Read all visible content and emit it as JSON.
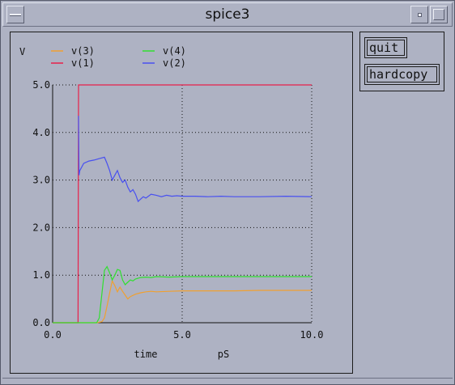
{
  "window": {
    "title": "spice3"
  },
  "buttons": {
    "quit": "quit",
    "hardcopy": "hardcopy"
  },
  "colors": {
    "background": "#aeb2c3",
    "v3": "#f0a030",
    "v1": "#e8204a",
    "v4": "#30e030",
    "v2": "#4850f0"
  },
  "chart_data": {
    "type": "line",
    "title": "",
    "ylabel": "V",
    "xlabel": "time",
    "xunit": "pS",
    "xlim": [
      0,
      10
    ],
    "ylim": [
      0,
      5
    ],
    "grid": true,
    "xticks": [
      "0.0",
      "5.0",
      "10.0"
    ],
    "yticks": [
      "0.0",
      "1.0",
      "2.0",
      "3.0",
      "4.0",
      "5.0"
    ],
    "legend_position": "top-left",
    "series": [
      {
        "name": "v(3)",
        "color": "#f0a030",
        "x": [
          0,
          1.7,
          1.9,
          2.0,
          2.1,
          2.2,
          2.3,
          2.4,
          2.5,
          2.6,
          2.7,
          2.8,
          2.9,
          3.0,
          3.2,
          3.4,
          3.6,
          3.8,
          4.0,
          4.5,
          5.0,
          6.0,
          7.0,
          8.0,
          9.0,
          10.0
        ],
        "y": [
          0,
          0,
          0.02,
          0.1,
          0.35,
          0.62,
          0.88,
          0.78,
          0.65,
          0.75,
          0.66,
          0.58,
          0.5,
          0.55,
          0.6,
          0.63,
          0.65,
          0.66,
          0.65,
          0.66,
          0.67,
          0.67,
          0.67,
          0.68,
          0.68,
          0.68
        ]
      },
      {
        "name": "v(1)",
        "color": "#e8204a",
        "x": [
          0,
          0.98,
          1.0,
          10.0
        ],
        "y": [
          0,
          0,
          5.0,
          5.0
        ]
      },
      {
        "name": "v(4)",
        "color": "#30e030",
        "x": [
          0,
          1.7,
          1.8,
          1.9,
          2.0,
          2.1,
          2.2,
          2.3,
          2.4,
          2.5,
          2.6,
          2.7,
          2.8,
          2.9,
          3.0,
          3.1,
          3.2,
          3.4,
          3.6,
          3.8,
          4.0,
          4.5,
          5.0,
          6.0,
          7.0,
          8.0,
          9.0,
          10.0
        ],
        "y": [
          0,
          0,
          0.1,
          0.6,
          1.1,
          1.18,
          1.05,
          0.9,
          1.0,
          1.12,
          1.1,
          0.9,
          0.8,
          0.85,
          0.9,
          0.88,
          0.92,
          0.95,
          0.96,
          0.95,
          0.97,
          0.96,
          0.97,
          0.97,
          0.97,
          0.97,
          0.97,
          0.97
        ]
      },
      {
        "name": "v(2)",
        "color": "#4850f0",
        "x": [
          0,
          0.98,
          1.0,
          1.02,
          1.05,
          1.1,
          1.2,
          1.4,
          1.6,
          1.8,
          2.0,
          2.1,
          2.2,
          2.3,
          2.4,
          2.5,
          2.6,
          2.7,
          2.8,
          2.9,
          3.0,
          3.1,
          3.2,
          3.3,
          3.4,
          3.5,
          3.6,
          3.8,
          4.0,
          4.2,
          4.4,
          4.6,
          4.8,
          5.0,
          5.5,
          6.0,
          6.5,
          7.0,
          8.0,
          9.0,
          10.0
        ],
        "y": [
          null,
          null,
          4.35,
          3.1,
          3.2,
          3.25,
          3.35,
          3.4,
          3.42,
          3.45,
          3.48,
          3.35,
          3.2,
          3.0,
          3.1,
          3.2,
          3.05,
          2.95,
          3.0,
          2.85,
          2.75,
          2.8,
          2.7,
          2.55,
          2.6,
          2.65,
          2.62,
          2.7,
          2.68,
          2.65,
          2.68,
          2.66,
          2.67,
          2.66,
          2.66,
          2.65,
          2.66,
          2.65,
          2.65,
          2.66,
          2.65
        ]
      }
    ]
  }
}
